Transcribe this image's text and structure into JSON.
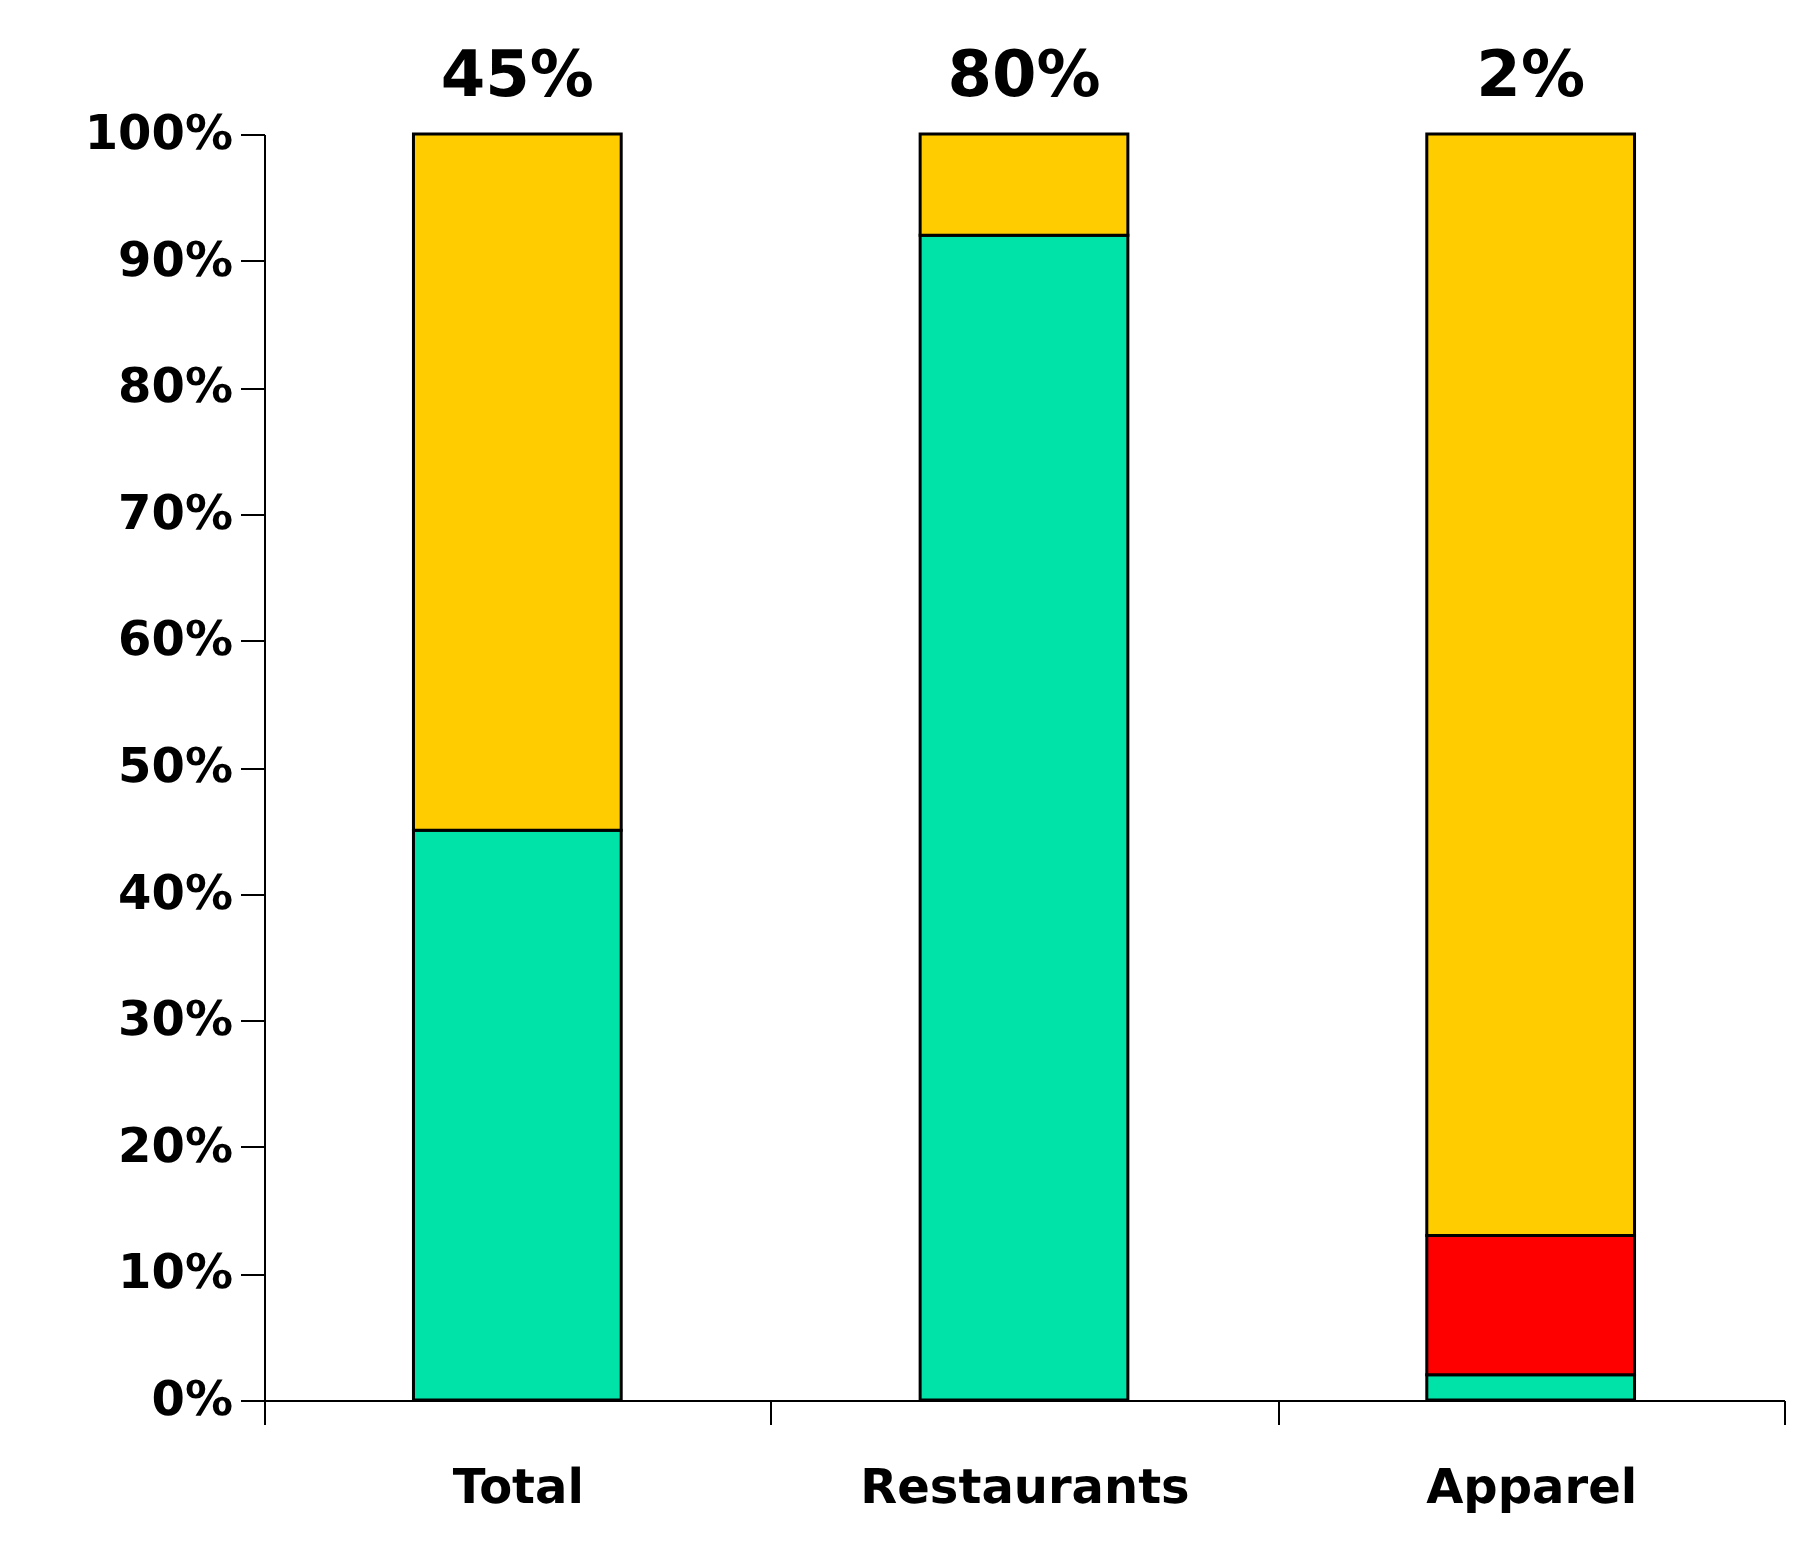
{
  "chart_data": {
    "type": "bar",
    "stacked": true,
    "categories": [
      "Total",
      "Restaurants",
      "Apparel"
    ],
    "series": [
      {
        "color": "#00e3a8",
        "values": [
          45,
          92,
          2
        ]
      },
      {
        "color": "#ff0000",
        "values": [
          null,
          null,
          11
        ]
      },
      {
        "color": "#ffcc00",
        "values": [
          55,
          8,
          87
        ]
      }
    ],
    "annotations": [
      {
        "text": "45%",
        "x": "Total",
        "y": 100
      },
      {
        "text": "80%",
        "x": "Restaurants",
        "y": 100
      },
      {
        "text": "2%",
        "x": "Apparel",
        "y": 100
      }
    ],
    "ylim": [
      0,
      100
    ],
    "yticks": [
      {
        "value": 0,
        "label": "0%"
      },
      {
        "value": 10,
        "label": "10%"
      },
      {
        "value": 20,
        "label": "20%"
      },
      {
        "value": 30,
        "label": "30%"
      },
      {
        "value": 40,
        "label": "40%"
      },
      {
        "value": 50,
        "label": "50%"
      },
      {
        "value": 60,
        "label": "60%"
      },
      {
        "value": 70,
        "label": "70%"
      },
      {
        "value": 80,
        "label": "80%"
      },
      {
        "value": 90,
        "label": "90%"
      },
      {
        "value": 100,
        "label": "100%"
      }
    ]
  }
}
